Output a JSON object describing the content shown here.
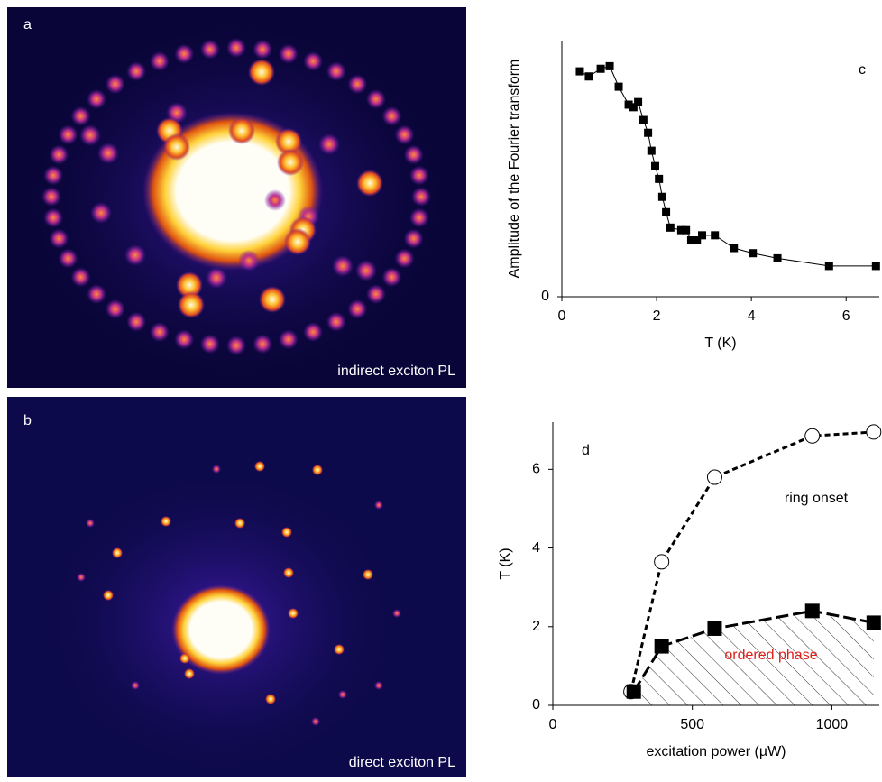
{
  "panels": [
    {
      "label": "a",
      "caption": "indirect exciton PL"
    },
    {
      "label": "b",
      "caption": "direct exciton PL"
    }
  ],
  "chart_data": [
    {
      "type": "scatter-line",
      "panel_label": "c",
      "x_label": "T (K)",
      "y_label": "Amplitude of the Fourier transform",
      "xlim": [
        0,
        6.7
      ],
      "ylim": [
        0,
        1
      ],
      "xticks": [
        0,
        2,
        4,
        6
      ],
      "yticks": [
        0
      ],
      "series": [
        {
          "color": "#000000",
          "marker": "square-filled",
          "line": "solid",
          "x": [
            0.38,
            0.57,
            0.82,
            1.01,
            1.2,
            1.41,
            1.51,
            1.61,
            1.72,
            1.82,
            1.89,
            1.97,
            2.05,
            2.12,
            2.2,
            2.29,
            2.52,
            2.62,
            2.73,
            2.85,
            2.96,
            3.23,
            3.63,
            4.03,
            4.55,
            5.64,
            6.63
          ],
          "values": [
            0.88,
            0.86,
            0.89,
            0.9,
            0.82,
            0.75,
            0.74,
            0.76,
            0.69,
            0.64,
            0.57,
            0.51,
            0.46,
            0.39,
            0.33,
            0.27,
            0.26,
            0.26,
            0.22,
            0.22,
            0.24,
            0.24,
            0.19,
            0.17,
            0.15,
            0.12,
            0.12
          ]
        }
      ]
    },
    {
      "type": "scatter-line",
      "panel_label": "d",
      "x_label": "excitation power (µW)",
      "y_label": "T (K)",
      "xlim": [
        0,
        1170
      ],
      "ylim": [
        0,
        7.2
      ],
      "xticks": [
        0,
        500,
        1000
      ],
      "yticks": [
        0,
        2,
        4,
        6
      ],
      "series": [
        {
          "color": "#000000",
          "marker": "circle-open",
          "line": "dashed",
          "x": [
            280,
            390,
            580,
            930,
            1150
          ],
          "values": [
            0.35,
            3.65,
            5.8,
            6.85,
            6.95
          ]
        },
        {
          "color": "#000000",
          "marker": "square-filled",
          "line": "long-dashed",
          "hatch_below": true,
          "x": [
            290,
            390,
            580,
            930,
            1150
          ],
          "values": [
            0.35,
            1.5,
            1.95,
            2.4,
            2.1
          ]
        }
      ],
      "annotations": [
        {
          "text": "ring onset",
          "color": "#000000"
        },
        {
          "text": "ordered phase",
          "color": "#e0201b"
        }
      ]
    }
  ]
}
